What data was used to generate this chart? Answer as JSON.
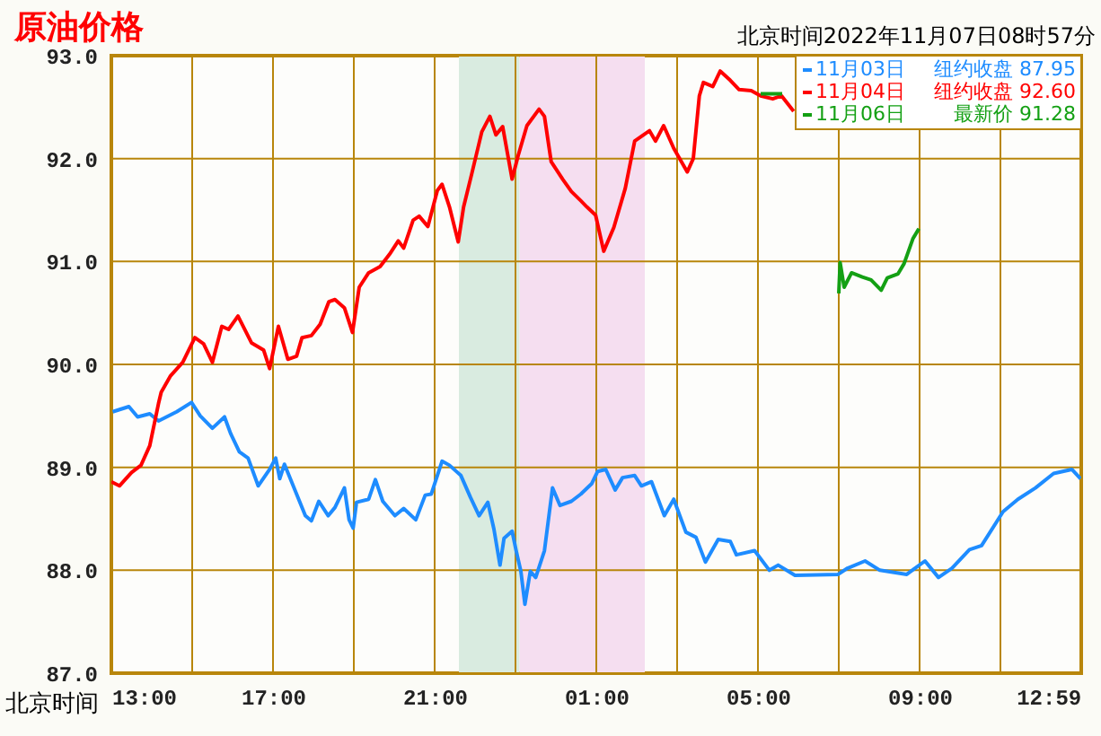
{
  "chart_data": {
    "type": "line",
    "title": "原油价格",
    "xlabel": "北京时间",
    "annotations": [
      "北京时间2022年11月07日08时57分",
      "纽约收盘 87.95",
      "纽约收盘 92.60",
      "最新价 91.28"
    ],
    "xlim": [
      "2022-11-06T13:00",
      "2022-11-07T13:00"
    ],
    "ylim": [
      87,
      93
    ],
    "xticks": [
      {
        "value": "2022-11-06T13:00",
        "label": "13:00"
      },
      {
        "value": "2022-11-06T15:00",
        "label": null
      },
      {
        "value": "2022-11-06T17:00",
        "label": "17:00"
      },
      {
        "value": "2022-11-06T19:00",
        "label": null
      },
      {
        "value": "2022-11-06T21:00",
        "label": "21:00"
      },
      {
        "value": "2022-11-06T23:00",
        "label": null
      },
      {
        "value": "2022-11-07T01:00",
        "label": "01:00"
      },
      {
        "value": "2022-11-07T03:00",
        "label": null
      },
      {
        "value": "2022-11-07T05:00",
        "label": "05:00"
      },
      {
        "value": "2022-11-07T07:00",
        "label": null
      },
      {
        "value": "2022-11-07T09:00",
        "label": "09:00"
      },
      {
        "value": "2022-11-07T11:00",
        "label": null
      },
      {
        "value": "2022-11-07T12:59",
        "label": "12:59"
      }
    ],
    "yticks": [
      {
        "value": 87,
        "label": "87.0"
      },
      {
        "value": 88,
        "label": "88.0"
      },
      {
        "value": 89,
        "label": "89.0"
      },
      {
        "value": 90,
        "label": "90.0"
      },
      {
        "value": 91,
        "label": "91.0"
      },
      {
        "value": 92,
        "label": "92.0"
      },
      {
        "value": 93,
        "label": "93.0"
      }
    ],
    "grid": true,
    "legend": "top right",
    "line_style": "solid",
    "bands": [
      {
        "axis": "x",
        "from": "2022-11-06T21:36",
        "to": "2022-11-06T23:06",
        "color": "#d9ebe0"
      },
      {
        "axis": "x",
        "from": "2022-11-06T23:06",
        "to": "2022-11-07T02:12",
        "color": "#f5def0"
      }
    ],
    "series": [
      {
        "name": "11月03日",
        "color": "#1e8cff",
        "x": [
          "2022-11-06T13:02",
          "2022-11-06T13:26",
          "2022-11-06T13:39",
          "2022-11-06T13:57",
          "2022-11-06T14:10",
          "2022-11-06T14:37",
          "2022-11-06T14:59",
          "2022-11-06T15:12",
          "2022-11-06T15:30",
          "2022-11-06T15:48",
          "2022-11-06T15:57",
          "2022-11-06T16:10",
          "2022-11-06T16:23",
          "2022-11-06T16:38",
          "2022-11-06T16:55",
          "2022-11-06T17:04",
          "2022-11-06T17:10",
          "2022-11-06T17:17",
          "2022-11-06T17:35",
          "2022-11-06T17:48",
          "2022-11-06T17:57",
          "2022-11-06T18:08",
          "2022-11-06T18:22",
          "2022-11-06T18:32",
          "2022-11-06T18:46",
          "2022-11-06T18:53",
          "2022-11-06T18:59",
          "2022-11-06T19:04",
          "2022-11-06T19:22",
          "2022-11-06T19:32",
          "2022-11-06T19:43",
          "2022-11-06T20:01",
          "2022-11-06T20:14",
          "2022-11-06T20:32",
          "2022-11-06T20:46",
          "2022-11-06T20:55",
          "2022-11-06T21:11",
          "2022-11-06T21:22",
          "2022-11-06T21:39",
          "2022-11-06T21:53",
          "2022-11-06T22:06",
          "2022-11-06T22:19",
          "2022-11-06T22:28",
          "2022-11-06T22:37",
          "2022-11-06T22:43",
          "2022-11-06T22:55",
          "2022-11-06T23:01",
          "2022-11-06T23:08",
          "2022-11-06T23:14",
          "2022-11-06T23:22",
          "2022-11-06T23:30",
          "2022-11-06T23:43",
          "2022-11-06T23:55",
          "2022-11-07T00:06",
          "2022-11-07T00:23",
          "2022-11-07T00:37",
          "2022-11-07T00:53",
          "2022-11-07T01:02",
          "2022-11-07T01:14",
          "2022-11-07T01:28",
          "2022-11-07T01:39",
          "2022-11-07T01:57",
          "2022-11-07T02:07",
          "2022-11-07T02:22",
          "2022-11-07T02:41",
          "2022-11-07T02:55",
          "2022-11-07T03:13",
          "2022-11-07T03:28",
          "2022-11-07T03:42",
          "2022-11-07T04:01",
          "2022-11-07T04:19",
          "2022-11-07T04:28",
          "2022-11-07T04:55",
          "2022-11-07T05:17",
          "2022-11-07T05:30",
          "2022-11-07T05:55",
          "2022-11-07T06:59",
          "2022-11-07T07:13",
          "2022-11-07T07:39",
          "2022-11-07T08:01",
          "2022-11-07T08:41",
          "2022-11-07T09:08",
          "2022-11-07T09:28",
          "2022-11-07T09:48",
          "2022-11-07T10:14",
          "2022-11-07T10:32",
          "2022-11-07T11:04",
          "2022-11-07T11:26",
          "2022-11-07T11:52",
          "2022-11-07T12:19",
          "2022-11-07T12:46",
          "2022-11-07T12:59"
        ],
        "values": [
          89.54,
          89.59,
          89.49,
          89.52,
          89.45,
          89.54,
          89.63,
          89.5,
          89.38,
          89.49,
          89.33,
          89.15,
          89.09,
          88.82,
          88.98,
          89.09,
          88.89,
          89.03,
          88.74,
          88.53,
          88.48,
          88.67,
          88.53,
          88.61,
          88.8,
          88.49,
          88.41,
          88.66,
          88.69,
          88.88,
          88.67,
          88.53,
          88.6,
          88.49,
          88.73,
          88.74,
          89.06,
          89.02,
          88.92,
          88.71,
          88.53,
          88.66,
          88.4,
          88.05,
          88.31,
          88.38,
          88.19,
          87.99,
          87.67,
          87.99,
          87.93,
          88.19,
          88.8,
          88.63,
          88.67,
          88.74,
          88.84,
          88.96,
          88.98,
          88.78,
          88.9,
          88.92,
          88.82,
          88.86,
          88.53,
          88.69,
          88.37,
          88.32,
          88.08,
          88.3,
          88.28,
          88.15,
          88.19,
          88.0,
          88.05,
          87.95,
          87.96,
          88.02,
          88.09,
          88.0,
          87.96,
          88.09,
          87.93,
          88.02,
          88.2,
          88.24,
          88.57,
          88.69,
          88.8,
          88.94,
          88.98,
          88.89
        ]
      },
      {
        "name": "11月04日",
        "color": "#ff0000",
        "x": [
          "2022-11-06T13:00",
          "2022-11-06T13:12",
          "2022-11-06T13:30",
          "2022-11-06T13:44",
          "2022-11-06T13:57",
          "2022-11-06T14:10",
          "2022-11-06T14:14",
          "2022-11-06T14:28",
          "2022-11-06T14:46",
          "2022-11-06T15:04",
          "2022-11-06T15:17",
          "2022-11-06T15:30",
          "2022-11-06T15:44",
          "2022-11-06T15:54",
          "2022-11-06T16:08",
          "2022-11-06T16:28",
          "2022-11-06T16:46",
          "2022-11-06T16:55",
          "2022-11-06T17:08",
          "2022-11-06T17:22",
          "2022-11-06T17:35",
          "2022-11-06T17:43",
          "2022-11-06T17:57",
          "2022-11-06T18:10",
          "2022-11-06T18:23",
          "2022-11-06T18:32",
          "2022-11-06T18:46",
          "2022-11-06T18:58",
          "2022-11-06T19:08",
          "2022-11-06T19:22",
          "2022-11-06T19:39",
          "2022-11-06T19:53",
          "2022-11-06T20:06",
          "2022-11-06T20:14",
          "2022-11-06T20:28",
          "2022-11-06T20:37",
          "2022-11-06T20:50",
          "2022-11-06T21:04",
          "2022-11-06T21:11",
          "2022-11-06T21:22",
          "2022-11-06T21:35",
          "2022-11-06T21:43",
          "2022-11-06T21:55",
          "2022-11-06T22:10",
          "2022-11-06T22:22",
          "2022-11-06T22:31",
          "2022-11-06T22:41",
          "2022-11-06T22:55",
          "2022-11-06T23:04",
          "2022-11-06T23:17",
          "2022-11-06T23:35",
          "2022-11-06T23:43",
          "2022-11-06T23:53",
          "2022-11-07T00:10",
          "2022-11-07T00:23",
          "2022-11-07T00:37",
          "2022-11-07T00:46",
          "2022-11-07T00:59",
          "2022-11-07T01:11",
          "2022-11-07T01:26",
          "2022-11-07T01:43",
          "2022-11-07T01:57",
          "2022-11-07T02:19",
          "2022-11-07T02:28",
          "2022-11-07T02:40",
          "2022-11-07T02:55",
          "2022-11-07T03:15",
          "2022-11-07T03:24",
          "2022-11-07T03:33",
          "2022-11-07T03:39",
          "2022-11-07T03:53",
          "2022-11-07T04:04",
          "2022-11-07T04:19",
          "2022-11-07T04:32",
          "2022-11-07T04:50",
          "2022-11-07T05:04",
          "2022-11-07T05:22",
          "2022-11-07T05:35",
          "2022-11-07T05:53"
        ],
        "values": [
          88.86,
          88.82,
          88.95,
          89.02,
          89.21,
          89.62,
          89.73,
          89.89,
          90.02,
          90.26,
          90.2,
          90.02,
          90.37,
          90.34,
          90.47,
          90.21,
          90.14,
          89.96,
          90.37,
          90.05,
          90.08,
          90.26,
          90.28,
          90.39,
          90.61,
          90.63,
          90.55,
          90.31,
          90.75,
          90.89,
          90.95,
          91.07,
          91.2,
          91.13,
          91.4,
          91.44,
          91.34,
          91.69,
          91.75,
          91.53,
          91.19,
          91.53,
          91.85,
          92.26,
          92.41,
          92.23,
          92.31,
          91.8,
          92.03,
          92.32,
          92.48,
          92.41,
          91.97,
          91.8,
          91.68,
          91.59,
          91.53,
          91.45,
          91.1,
          91.33,
          91.71,
          92.17,
          92.27,
          92.17,
          92.32,
          92.1,
          91.87,
          92.0,
          92.61,
          92.74,
          92.7,
          92.85,
          92.76,
          92.67,
          92.66,
          92.61,
          92.58,
          92.61,
          92.46
        ]
      },
      {
        "name": "11月06日",
        "color": "#14a014",
        "x": [
          "2022-11-07T05:04",
          "2022-11-07T05:36",
          "2022-11-07T06:30",
          "2022-11-07T07:00",
          "2022-11-07T07:02",
          "2022-11-07T07:08",
          "2022-11-07T07:19",
          "2022-11-07T07:35",
          "2022-11-07T07:48",
          "2022-11-07T08:03",
          "2022-11-07T08:12",
          "2022-11-07T08:28",
          "2022-11-07T08:37",
          "2022-11-07T08:50",
          "2022-11-07T08:59"
        ],
        "values": [
          92.63,
          92.63,
          null,
          90.69,
          90.99,
          90.75,
          90.89,
          90.85,
          90.82,
          90.72,
          90.84,
          90.88,
          90.98,
          91.22,
          91.32
        ]
      }
    ]
  }
}
